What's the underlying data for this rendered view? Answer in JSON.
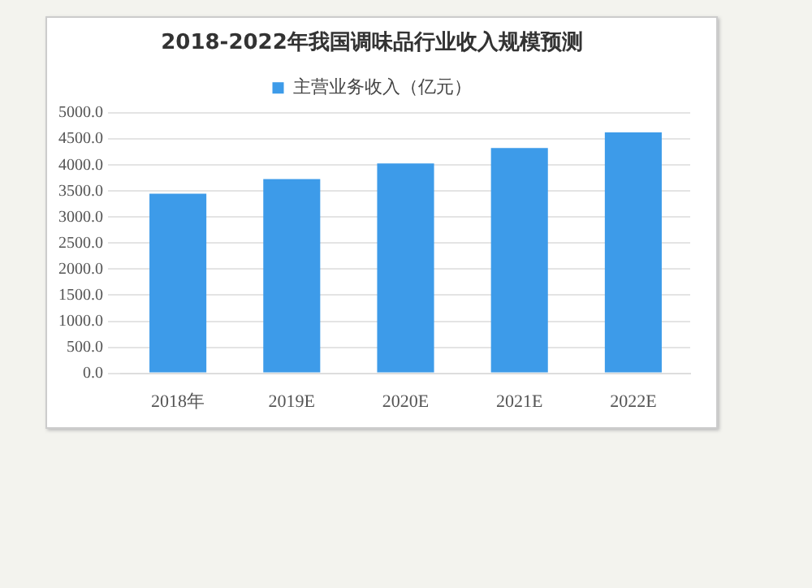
{
  "chart_data": {
    "type": "bar",
    "title": "2018-2022年我国调味品行业收入规模预测",
    "categories": [
      "2018年",
      "2019E",
      "2020E",
      "2021E",
      "2022E"
    ],
    "series": [
      {
        "name": "主营业务收入（亿元）",
        "color": "#3d9be9",
        "values": [
          3450,
          3730,
          4030,
          4330,
          4630
        ]
      }
    ],
    "ylim": [
      0,
      5000
    ],
    "yticks": [
      {
        "value": 0,
        "label": "0.0"
      },
      {
        "value": 500,
        "label": "500.0"
      },
      {
        "value": 1000,
        "label": "1000.0"
      },
      {
        "value": 1500,
        "label": "1500.0"
      },
      {
        "value": 2000,
        "label": "2000.0"
      },
      {
        "value": 2500,
        "label": "2500.0"
      },
      {
        "value": 3000,
        "label": "3000.0"
      },
      {
        "value": 3500,
        "label": "3500.0"
      },
      {
        "value": 4000,
        "label": "4000.0"
      },
      {
        "value": 4500,
        "label": "4500.0"
      },
      {
        "value": 5000,
        "label": "5000.0"
      }
    ],
    "grid": "y",
    "legend": "top"
  }
}
